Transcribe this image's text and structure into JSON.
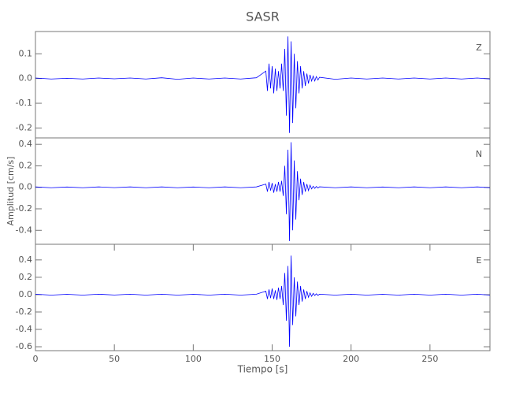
{
  "chart_data": [
    {
      "type": "line",
      "title": "SASR",
      "label": "Z",
      "x": [
        0,
        10,
        20,
        30,
        40,
        50,
        60,
        70,
        80,
        90,
        100,
        110,
        120,
        130,
        140,
        146,
        147,
        148,
        149,
        150,
        151,
        152,
        153,
        154,
        155,
        156,
        157,
        158,
        159,
        160,
        161,
        162,
        163,
        164,
        165,
        166,
        167,
        168,
        169,
        170,
        171,
        172,
        173,
        174,
        175,
        176,
        177,
        178,
        179,
        180,
        190,
        200,
        210,
        220,
        230,
        240,
        250,
        260,
        270,
        280,
        288
      ],
      "series": [
        {
          "color": "#0000ff",
          "values": [
            0.002,
            -0.002,
            0.001,
            -0.002,
            0.002,
            -0.001,
            0.002,
            -0.002,
            0.003,
            -0.003,
            0.002,
            -0.002,
            0.002,
            -0.002,
            0.003,
            0.03,
            -0.05,
            0.06,
            -0.04,
            0.05,
            -0.06,
            0.04,
            -0.05,
            0.03,
            -0.04,
            0.06,
            -0.05,
            0.12,
            -0.15,
            0.17,
            -0.22,
            0.15,
            -0.18,
            0.1,
            -0.12,
            0.07,
            -0.06,
            0.05,
            -0.04,
            0.03,
            -0.03,
            0.02,
            -0.02,
            0.015,
            -0.01,
            0.01,
            -0.01,
            0.008,
            -0.006,
            0.005,
            -0.003,
            0.002,
            -0.002,
            0.002,
            -0.002,
            0.002,
            -0.002,
            0.002,
            -0.002,
            0.002,
            -0.002
          ]
        }
      ],
      "xlim": [
        0,
        288
      ],
      "ylim": [
        -0.24,
        0.19
      ],
      "yticks": [
        0.1,
        {
          "value": 0,
          "label": "0.0"
        },
        -0.1,
        -0.2
      ]
    },
    {
      "type": "line",
      "label": "N",
      "ylabel": "Amplitud [cm/s]",
      "x": [
        0,
        10,
        20,
        30,
        40,
        50,
        60,
        70,
        80,
        90,
        100,
        110,
        120,
        130,
        140,
        146,
        147,
        148,
        149,
        150,
        151,
        152,
        153,
        154,
        155,
        156,
        157,
        158,
        159,
        160,
        161,
        162,
        163,
        164,
        165,
        166,
        167,
        168,
        169,
        170,
        171,
        172,
        173,
        174,
        175,
        176,
        177,
        178,
        179,
        180,
        190,
        200,
        210,
        220,
        230,
        240,
        250,
        260,
        270,
        280,
        288
      ],
      "series": [
        {
          "color": "#0000ff",
          "values": [
            0.004,
            -0.004,
            0.003,
            -0.004,
            0.004,
            -0.003,
            0.004,
            -0.004,
            0.004,
            -0.004,
            0.003,
            -0.004,
            0.004,
            -0.004,
            0.004,
            0.03,
            -0.04,
            0.05,
            -0.03,
            0.04,
            -0.05,
            0.03,
            -0.04,
            0.05,
            -0.04,
            0.06,
            -0.08,
            0.2,
            -0.25,
            0.35,
            -0.5,
            0.42,
            -0.4,
            0.25,
            -0.3,
            0.15,
            -0.12,
            0.08,
            -0.07,
            0.05,
            -0.04,
            0.03,
            -0.03,
            0.02,
            -0.015,
            0.01,
            -0.01,
            0.008,
            -0.006,
            0.005,
            -0.004,
            0.004,
            -0.004,
            0.003,
            -0.004,
            0.004,
            -0.004,
            0.004,
            -0.004,
            0.004,
            -0.004
          ]
        }
      ],
      "xlim": [
        0,
        288
      ],
      "ylim": [
        -0.53,
        0.46
      ],
      "yticks": [
        0.4,
        0.2,
        {
          "value": 0,
          "label": "0.0"
        },
        -0.2,
        -0.4
      ]
    },
    {
      "type": "line",
      "label": "E",
      "xlabel": "Tiempo [s]",
      "x": [
        0,
        10,
        20,
        30,
        40,
        50,
        60,
        70,
        80,
        90,
        100,
        110,
        120,
        130,
        140,
        146,
        147,
        148,
        149,
        150,
        151,
        152,
        153,
        154,
        155,
        156,
        157,
        158,
        159,
        160,
        161,
        162,
        163,
        164,
        165,
        166,
        167,
        168,
        169,
        170,
        171,
        172,
        173,
        174,
        175,
        176,
        177,
        178,
        179,
        180,
        190,
        200,
        210,
        220,
        230,
        240,
        250,
        260,
        270,
        280,
        288
      ],
      "series": [
        {
          "color": "#0000ff",
          "values": [
            0.005,
            -0.005,
            0.004,
            -0.005,
            0.005,
            -0.004,
            0.005,
            -0.005,
            0.005,
            -0.005,
            0.004,
            -0.005,
            0.005,
            -0.005,
            0.005,
            0.04,
            -0.05,
            0.06,
            -0.04,
            0.07,
            -0.05,
            0.05,
            -0.06,
            0.08,
            -0.05,
            0.1,
            -0.12,
            0.25,
            -0.3,
            0.33,
            -0.6,
            0.45,
            -0.35,
            0.2,
            -0.25,
            0.15,
            -0.12,
            0.1,
            -0.08,
            0.06,
            -0.05,
            0.04,
            -0.03,
            0.02,
            -0.02,
            0.015,
            -0.01,
            0.01,
            -0.008,
            0.005,
            -0.005,
            0.005,
            -0.005,
            0.004,
            -0.005,
            0.005,
            -0.005,
            0.005,
            -0.005,
            0.005,
            -0.005
          ]
        }
      ],
      "xlim": [
        0,
        288
      ],
      "ylim": [
        -0.645,
        0.58
      ],
      "yticks": [
        0.4,
        0.2,
        {
          "value": 0,
          "label": "0.0"
        },
        -0.2,
        -0.4,
        -0.6
      ],
      "xticks": [
        0,
        50,
        100,
        150,
        200,
        250
      ]
    }
  ]
}
